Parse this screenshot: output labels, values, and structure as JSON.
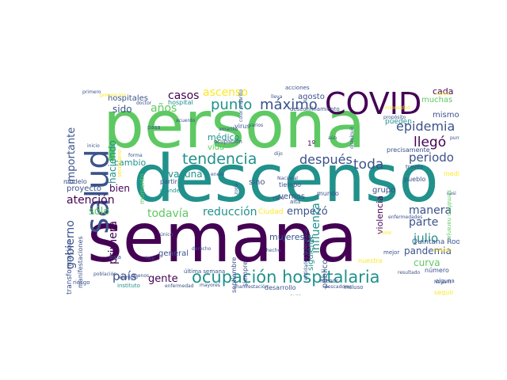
{
  "wordcloud": {
    "palette": [
      "#440154",
      "#3b528b",
      "#21918c",
      "#5ec962",
      "#fde725"
    ],
    "words": [
      {
        "text": "persona",
        "color": "#5ec962"
      },
      {
        "text": "descenso",
        "color": "#21918c"
      },
      {
        "text": "semana",
        "color": "#440154"
      },
      {
        "text": "COVID",
        "color": "#440154"
      },
      {
        "text": "salud",
        "color": "#3b528b"
      },
      {
        "text": "ocupación hospitalaria",
        "color": "#21918c"
      },
      {
        "text": "tendencia",
        "color": "#21918c"
      },
      {
        "text": "máximo",
        "color": "#3b528b"
      },
      {
        "text": "punto",
        "color": "#21918c"
      },
      {
        "text": "epidemia",
        "color": "#3b528b"
      },
      {
        "text": "llegó",
        "color": "#440154"
      },
      {
        "text": "después",
        "color": "#3b528b"
      },
      {
        "text": "toda",
        "color": "#3b528b"
      },
      {
        "text": "periodo",
        "color": "#3b528b"
      },
      {
        "text": "atención",
        "color": "#440154"
      },
      {
        "text": "reducción",
        "color": "#21918c"
      },
      {
        "text": "todavía",
        "color": "#5ec962"
      },
      {
        "text": "sólo",
        "color": "#5ec962"
      },
      {
        "text": "empezó",
        "color": "#3b528b"
      },
      {
        "text": "manera",
        "color": "#3b528b"
      },
      {
        "text": "parte",
        "color": "#3b528b"
      },
      {
        "text": "julio",
        "color": "#21918c"
      },
      {
        "text": "pandemia",
        "color": "#3b528b"
      },
      {
        "text": "curva",
        "color": "#5ec962"
      },
      {
        "text": "país",
        "color": "#3b528b"
      },
      {
        "text": "gente",
        "color": "#440154"
      },
      {
        "text": "influenza",
        "color": "#21918c"
      },
      {
        "text": "gobierno",
        "color": "#3b528b"
      },
      {
        "text": "primera",
        "color": "#440154"
      },
      {
        "text": "importante",
        "color": "#3b528b"
      },
      {
        "text": "haciendo",
        "color": "#21918c"
      },
      {
        "text": "casos",
        "color": "#440154"
      },
      {
        "text": "años",
        "color": "#5ec962"
      },
      {
        "text": "ascenso",
        "color": "#fde725"
      },
      {
        "text": "sido",
        "color": "#3b528b"
      },
      {
        "text": "cambio",
        "color": "#21918c"
      },
      {
        "text": "vacuna",
        "color": "#21918c"
      },
      {
        "text": "bien",
        "color": "#440154"
      },
      {
        "text": "proyecto",
        "color": "#3b528b"
      },
      {
        "text": "hospitales",
        "color": "#3b528b"
      },
      {
        "text": "médico",
        "color": "#21918c"
      },
      {
        "text": "vida",
        "color": "#5ec962"
      },
      {
        "text": "agosto",
        "color": "#3b528b"
      },
      {
        "text": "muchas",
        "color": "#5ec962"
      },
      {
        "text": "mismo",
        "color": "#3b528b"
      },
      {
        "text": "cada",
        "color": "#440154"
      },
      {
        "text": "mujeres",
        "color": "#3b528b"
      },
      {
        "text": "general",
        "color": "#3b528b"
      },
      {
        "text": "público",
        "color": "#3b528b"
      },
      {
        "text": "violencia",
        "color": "#440154"
      },
      {
        "text": "grupo",
        "color": "#3b528b"
      },
      {
        "text": "vemos",
        "color": "#3b528b"
      },
      {
        "text": "sino",
        "color": "#3b528b"
      },
      {
        "text": "siguiente",
        "color": "#21918c"
      },
      {
        "text": "transformación",
        "color": "#3b528b"
      },
      {
        "text": "manifestaciones",
        "color": "#3b528b"
      },
      {
        "text": "septiembre",
        "color": "#3b528b"
      },
      {
        "text": "siempre",
        "color": "#3b528b"
      },
      {
        "text": "Quintana Roo",
        "color": "#3b528b"
      },
      {
        "text": "número",
        "color": "#3b528b"
      },
      {
        "text": "pueblo",
        "color": "#3b528b"
      },
      {
        "text": "pueden",
        "color": "#21918c"
      },
      {
        "text": "precisamente",
        "color": "#3b528b"
      },
      {
        "text": "virus",
        "color": "#3b528b"
      },
      {
        "text": "ocupación",
        "color": "#3b528b"
      },
      {
        "text": "amarillo",
        "color": "#3b528b"
      },
      {
        "text": "acciones",
        "color": "#3b528b"
      },
      {
        "text": "desconfinamiento",
        "color": "#3b528b"
      },
      {
        "text": "hospital",
        "color": "#21918c"
      },
      {
        "text": "Ciudad",
        "color": "#fde725"
      },
      {
        "text": "mundo",
        "color": "#3b528b"
      },
      {
        "text": "tiempo",
        "color": "#3b528b"
      },
      {
        "text": "momento",
        "color": "#5ec962"
      },
      {
        "text": "partir",
        "color": "#3b528b"
      },
      {
        "text": "modelo",
        "color": "#3b528b"
      },
      {
        "text": "medida",
        "color": "#fde725"
      },
      {
        "text": "grande",
        "color": "#21918c"
      },
      {
        "text": "través",
        "color": "#3b528b"
      },
      {
        "text": "alguna",
        "color": "#3b528b"
      },
      {
        "text": "seguir",
        "color": "#fde725"
      },
      {
        "text": "mejor",
        "color": "#3b528b"
      },
      {
        "text": "nuestra",
        "color": "#fde725"
      },
      {
        "text": "incluso",
        "color": "#3b528b"
      },
      {
        "text": "desarrollo",
        "color": "#3b528b"
      },
      {
        "text": "menor",
        "color": "#3b528b"
      },
      {
        "text": "mayores",
        "color": "#3b528b"
      },
      {
        "text": "enfermedad",
        "color": "#3b528b"
      },
      {
        "text": "instituto",
        "color": "#21918c"
      },
      {
        "text": "riesgo",
        "color": "#3b528b"
      },
      {
        "text": "población",
        "color": "#3b528b"
      },
      {
        "text": "última semana",
        "color": "#3b528b"
      },
      {
        "text": "secretario",
        "color": "#fde725"
      },
      {
        "text": "primero",
        "color": "#3b528b"
      },
      {
        "text": "Nayarit",
        "color": "#3b528b"
      },
      {
        "text": "pasa",
        "color": "#3b528b"
      },
      {
        "text": "forma",
        "color": "#3b528b"
      },
      {
        "text": "baja",
        "color": "#3b528b"
      },
      {
        "text": "único",
        "color": "#3b528b"
      },
      {
        "text": "hecho",
        "color": "#3b528b"
      },
      {
        "text": "zona",
        "color": "#3b528b"
      },
      {
        "text": "alta",
        "color": "#3b528b"
      },
      {
        "text": "menos",
        "color": "#3b528b"
      },
      {
        "text": "doctor",
        "color": "#3b528b"
      },
      {
        "text": "prevención",
        "color": "#fde725"
      },
      {
        "text": "varios",
        "color": "#3b528b"
      },
      {
        "text": "propósito",
        "color": "#3b528b"
      },
      {
        "text": "casi",
        "color": "#3b528b"
      },
      {
        "text": "aún",
        "color": "#3b528b"
      },
      {
        "text": "lleva",
        "color": "#3b528b"
      },
      {
        "text": "inicio",
        "color": "#3b528b"
      },
      {
        "text": "acuerdo",
        "color": "#3b528b"
      },
      {
        "text": "Nacional",
        "color": "#3b528b"
      },
      {
        "text": "cuidado",
        "color": "#fde725"
      },
      {
        "text": "dijo",
        "color": "#3b528b"
      },
      {
        "text": "resultado",
        "color": "#3b528b"
      },
      {
        "text": "entidades federativas",
        "color": "#3b528b"
      },
      {
        "text": "derecho",
        "color": "#3b528b"
      },
      {
        "text": "color",
        "color": "#fde725"
      },
      {
        "text": "ejemplo",
        "color": "#3b528b"
      },
      {
        "text": "disminuir",
        "color": "#3b528b"
      },
      {
        "text": "semáforo naranja",
        "color": "#5ec962"
      },
      {
        "text": "manifestación",
        "color": "#3b528b"
      },
      {
        "text": "pescadores",
        "color": "#3b528b"
      },
      {
        "text": "intensidad",
        "color": "#fde725"
      },
      {
        "text": "punto",
        "color": "#3b528b"
      },
      {
        "text": "1º",
        "color": "#440154"
      },
      {
        "text": "clara",
        "color": "#3b528b"
      },
      {
        "text": "canes",
        "color": "#fde725"
      },
      {
        "text": "color amarillo",
        "color": "#3b528b"
      },
      {
        "text": "enfermedades",
        "color": "#3b528b"
      },
      {
        "text": "hoy",
        "color": "#3b528b"
      },
      {
        "text": "enero",
        "color": "#3b528b"
      },
      {
        "text": "ayer",
        "color": "#3b528b"
      }
    ]
  }
}
